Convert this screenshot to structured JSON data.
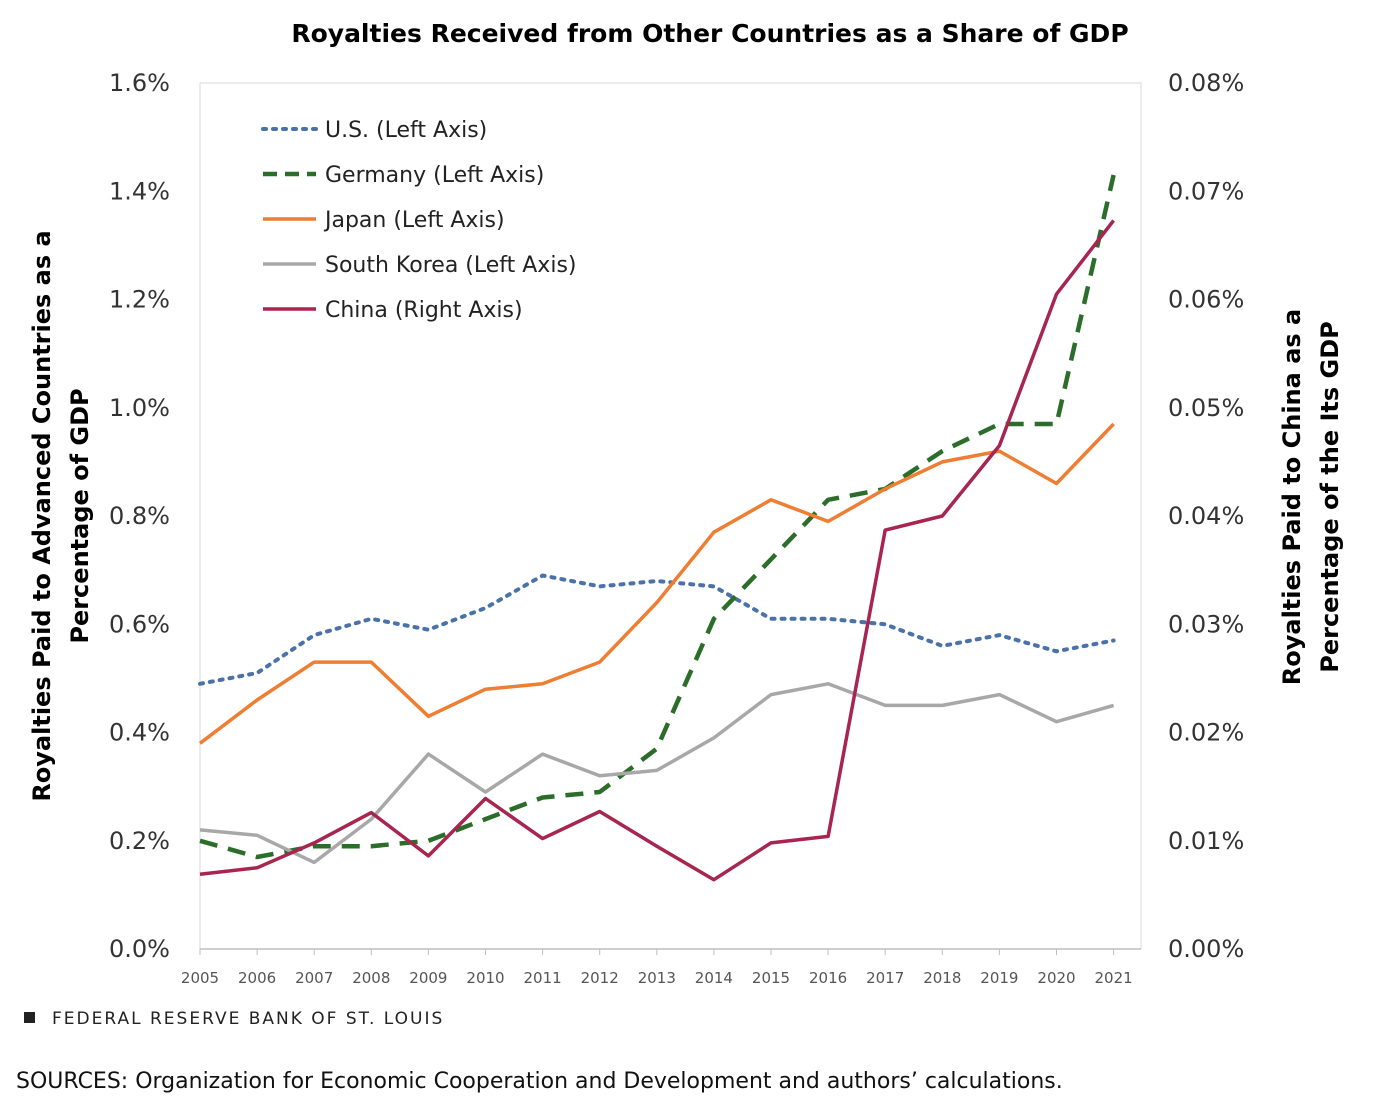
{
  "footer": {
    "brand": "FEDERAL RESERVE BANK OF ST. LOUIS",
    "sources": "SOURCES: Organization for Economic Cooperation and Development and authors’ calculations."
  },
  "chart_data": {
    "type": "line",
    "title": "Royalties Received from Other Countries as a Share of GDP",
    "xlabel": "",
    "ylabel": "Royalties Paid to Advanced Countries as a Percentage of GDP",
    "ylabel_lines": [
      "Royalties Paid to Advanced Countries as a",
      "Percentage of GDP"
    ],
    "y2label": "Royalties Paid to China as a Percentage of the Its GDP",
    "y2label_lines": [
      "Royalties Paid to China as a",
      "Percentage of the Its GDP"
    ],
    "ylim": [
      0,
      1.6
    ],
    "y2lim": [
      0,
      0.08
    ],
    "yticks": [
      "0.0%",
      "0.2%",
      "0.4%",
      "0.6%",
      "0.8%",
      "1.0%",
      "1.2%",
      "1.4%",
      "1.6%"
    ],
    "y2ticks": [
      "0.00%",
      "0.01%",
      "0.02%",
      "0.03%",
      "0.04%",
      "0.05%",
      "0.06%",
      "0.07%",
      "0.08%"
    ],
    "x": [
      "2005",
      "2006",
      "2007",
      "2008",
      "2009",
      "2010",
      "2011",
      "2012",
      "2013",
      "2014",
      "2015",
      "2016",
      "2017",
      "2018",
      "2019",
      "2020",
      "2021"
    ],
    "grid": false,
    "legend_position": "top-left",
    "series": [
      {
        "name": "U.S. (Left Axis)",
        "axis": "left",
        "color": "#4a72a8",
        "style": "dotted",
        "values": [
          0.49,
          0.51,
          0.58,
          0.61,
          0.59,
          0.63,
          0.69,
          0.67,
          0.68,
          0.67,
          0.61,
          0.61,
          0.6,
          0.56,
          0.58,
          0.55,
          0.57
        ]
      },
      {
        "name": "Germany (Left Axis)",
        "axis": "left",
        "color": "#2a6e2a",
        "style": "dashed",
        "values": [
          0.2,
          0.17,
          0.19,
          0.19,
          0.2,
          0.24,
          0.28,
          0.29,
          0.37,
          0.61,
          0.72,
          0.83,
          0.85,
          0.92,
          0.97,
          0.97,
          1.43
        ]
      },
      {
        "name": "Japan (Left Axis)",
        "axis": "left",
        "color": "#ef7d32",
        "style": "solid",
        "values": [
          0.38,
          0.46,
          0.53,
          0.53,
          0.43,
          0.48,
          0.49,
          0.53,
          0.64,
          0.77,
          0.83,
          0.79,
          0.85,
          0.9,
          0.92,
          0.86,
          0.97
        ]
      },
      {
        "name": "South Korea (Left Axis)",
        "axis": "left",
        "color": "#a8a8a8",
        "style": "solid",
        "values": [
          0.22,
          0.21,
          0.16,
          0.24,
          0.36,
          0.29,
          0.36,
          0.32,
          0.33,
          0.39,
          0.47,
          0.49,
          0.45,
          0.45,
          0.47,
          0.42,
          0.45
        ]
      },
      {
        "name": "China (Right Axis)",
        "axis": "right",
        "color": "#a8254f",
        "style": "solid",
        "values": [
          0.0069,
          0.0075,
          0.0098,
          0.0126,
          0.0086,
          0.0139,
          0.0102,
          0.0127,
          0.0095,
          0.0064,
          0.0098,
          0.0104,
          0.0387,
          0.04,
          0.0465,
          0.0605,
          0.0673
        ]
      }
    ]
  }
}
